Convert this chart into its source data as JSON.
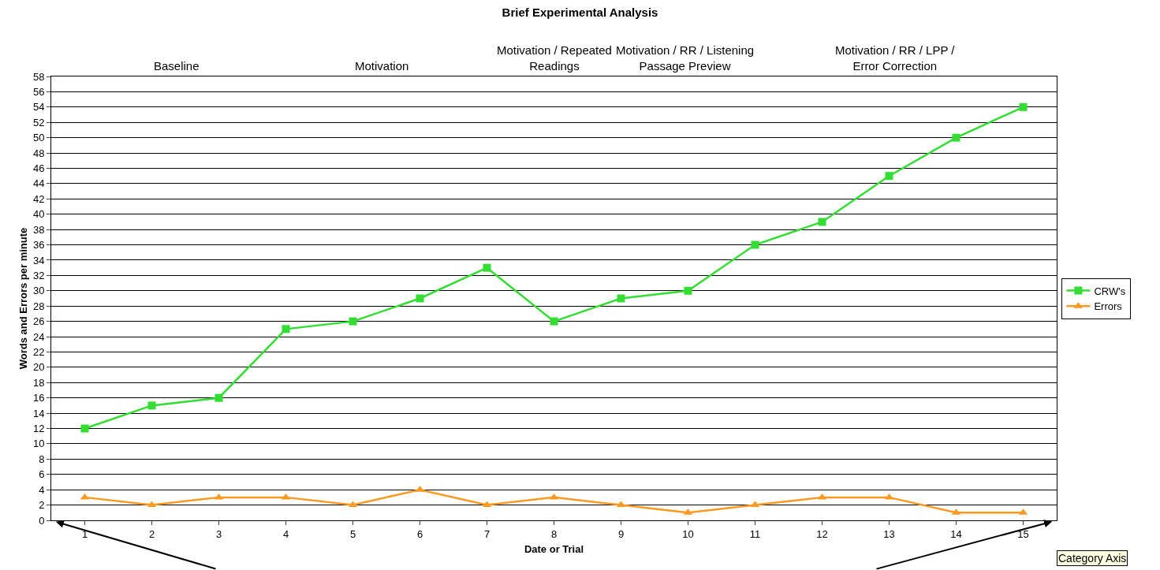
{
  "chart_data": {
    "type": "line",
    "title": "Brief Experimental Analysis",
    "xlabel": "Date or Trial",
    "ylabel": "Words and Errors per minute",
    "x": [
      1,
      2,
      3,
      4,
      5,
      6,
      7,
      8,
      9,
      10,
      11,
      12,
      13,
      14,
      15
    ],
    "xlim": [
      0.5,
      15.5
    ],
    "xticks": [
      1,
      2,
      3,
      4,
      5,
      6,
      7,
      8,
      9,
      10,
      11,
      12,
      13,
      14,
      15
    ],
    "ylim": [
      0,
      58
    ],
    "yticks": [
      0,
      2,
      4,
      6,
      8,
      10,
      12,
      14,
      16,
      18,
      20,
      22,
      24,
      26,
      28,
      30,
      32,
      34,
      36,
      38,
      40,
      42,
      44,
      46,
      48,
      50,
      52,
      54,
      56,
      58
    ],
    "series": [
      {
        "name": "CRW's",
        "color": "#33dd33",
        "marker": "square",
        "values": [
          12,
          15,
          16,
          25,
          26,
          29,
          33,
          26,
          29,
          30,
          36,
          39,
          45,
          50,
          54
        ]
      },
      {
        "name": "Errors",
        "color": "#ff9922",
        "marker": "triangle",
        "values": [
          3,
          2,
          3,
          3,
          2,
          4,
          2,
          3,
          2,
          1,
          2,
          3,
          3,
          1,
          1
        ]
      }
    ],
    "grid": "y",
    "legend": "right",
    "line_style": "solid",
    "annotations": [
      "Baseline",
      "Motivation",
      "Motivation / Repeated\nReadings",
      "Motivation / RR / Listening\nPassage Preview",
      "Motivation / RR / LPP /\nError Correction",
      "Category Axis"
    ]
  }
}
